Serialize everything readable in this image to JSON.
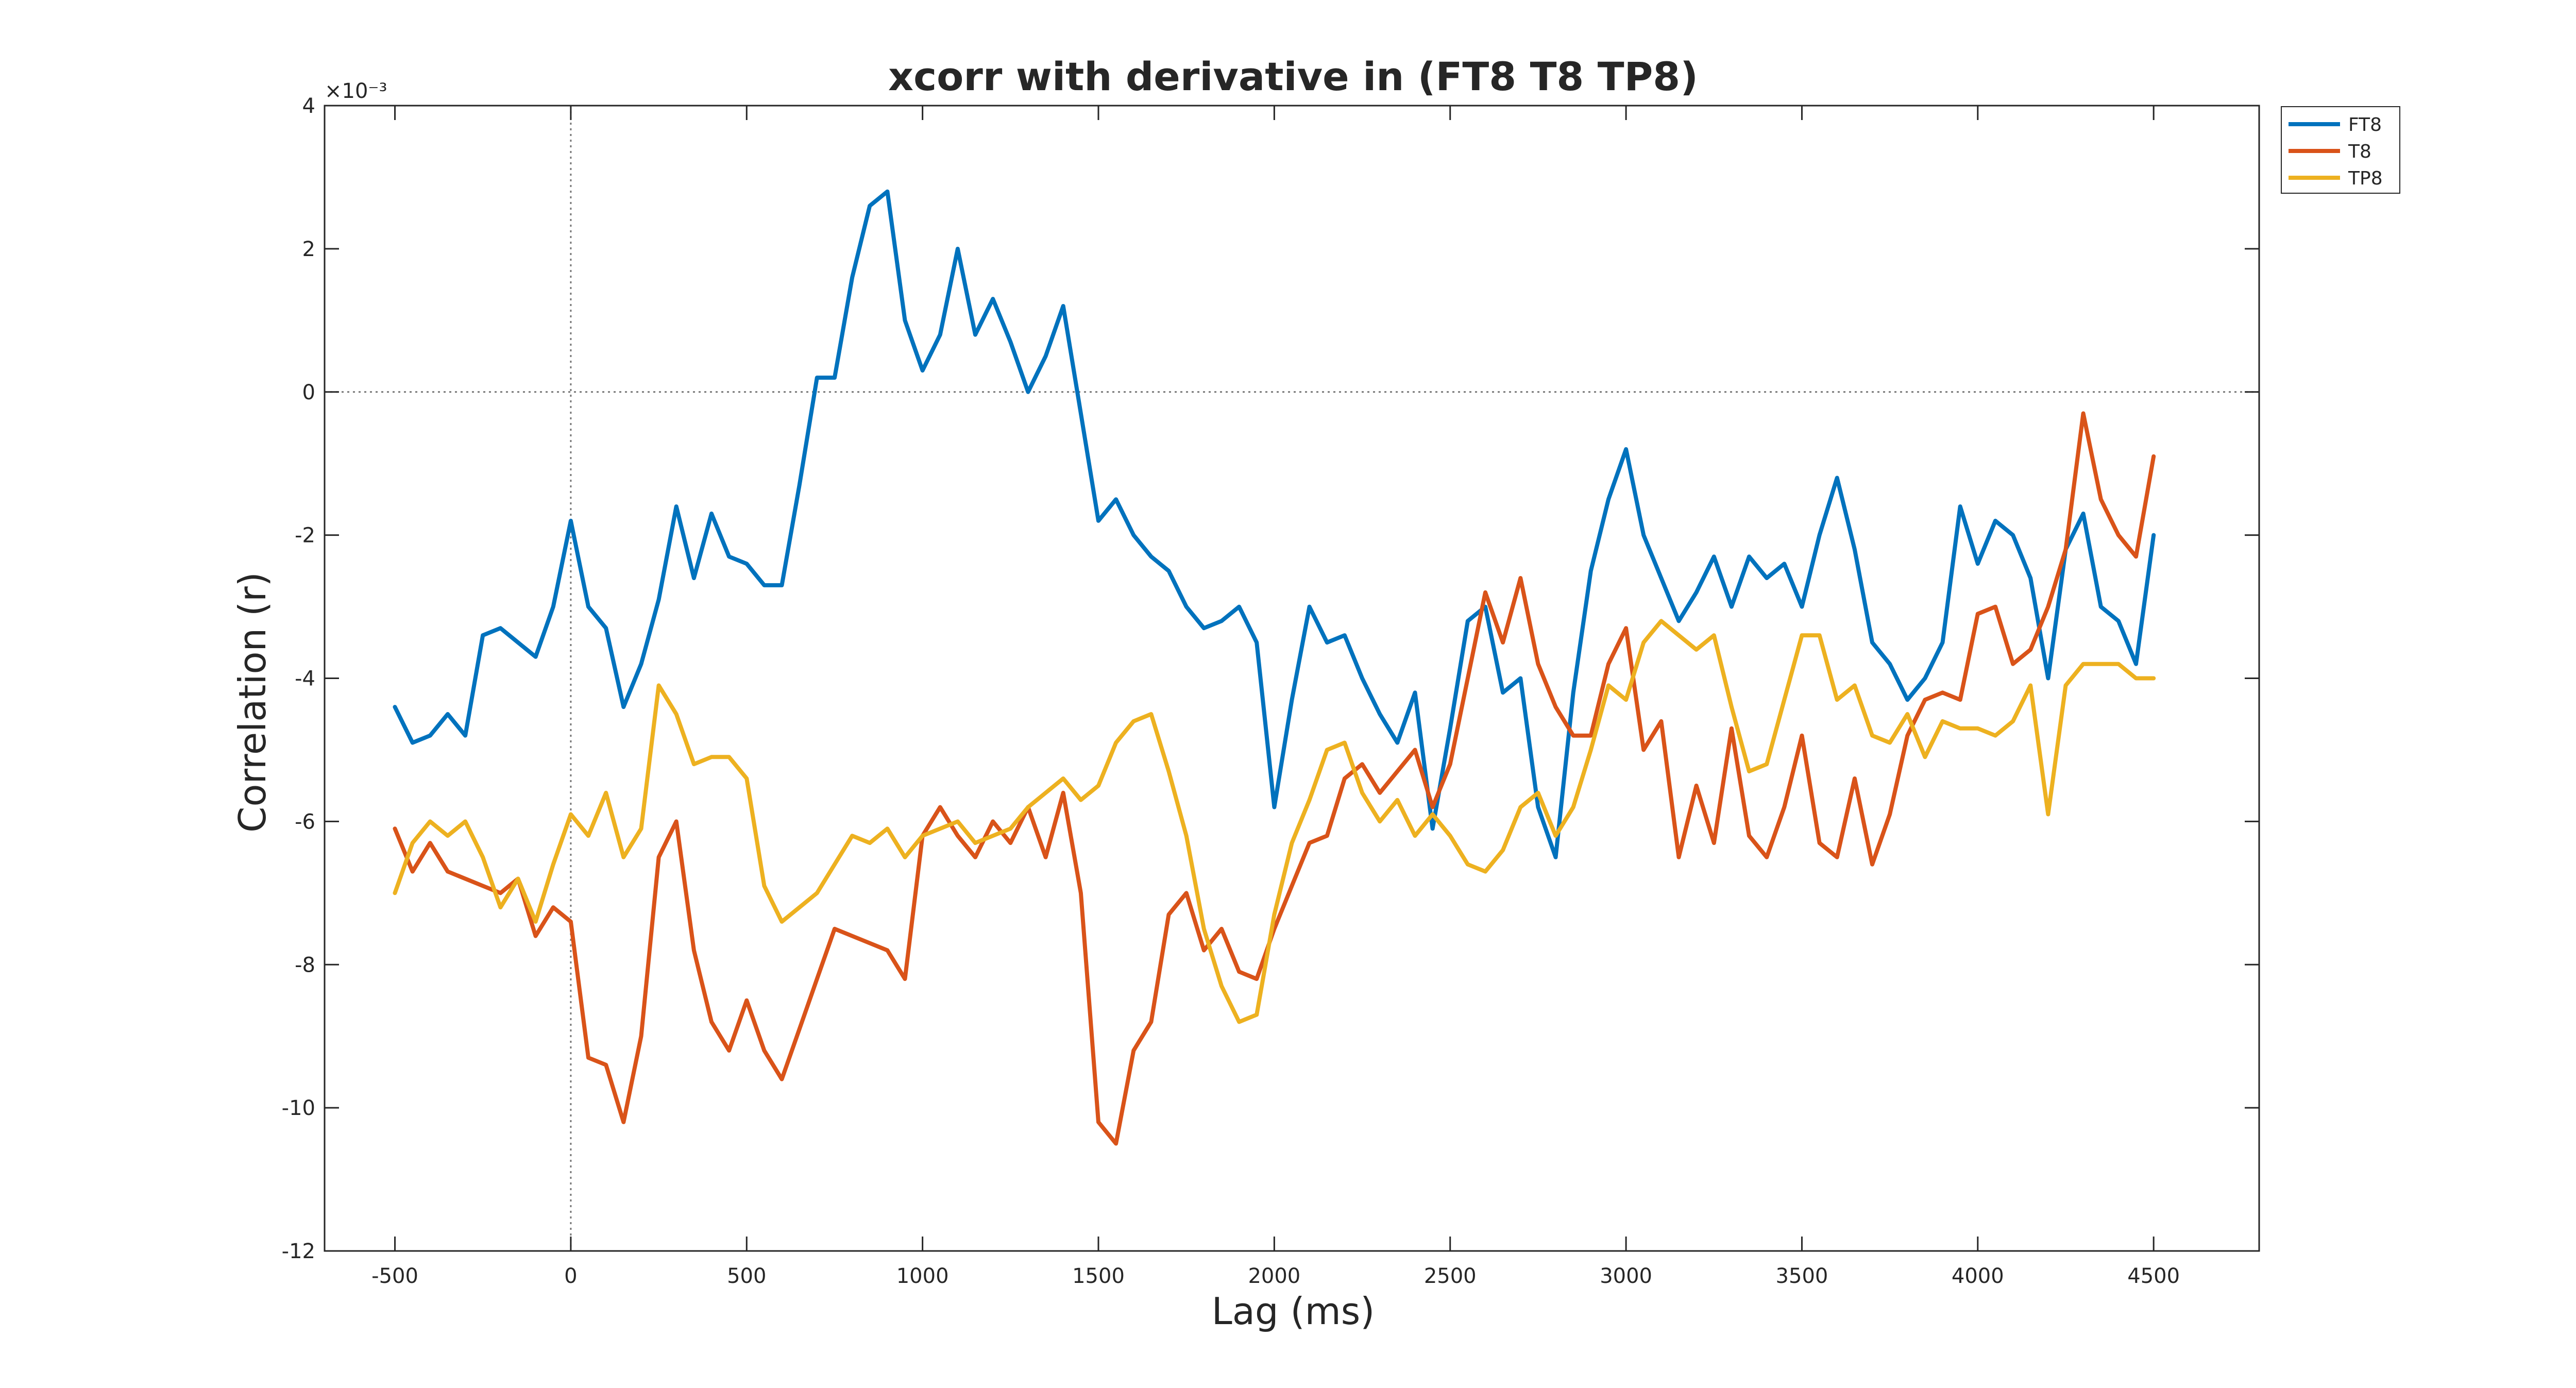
{
  "chart_data": {
    "type": "line",
    "title": "xcorr with derivative in (FT8 T8 TP8)",
    "xlabel": "Lag (ms)",
    "ylabel": "Correlation (r)",
    "y_exponent_label": "×10⁻³",
    "xlim": [
      -700,
      4800
    ],
    "ylim": [
      -12,
      4
    ],
    "xticks": [
      -500,
      0,
      500,
      1000,
      1500,
      2000,
      2500,
      3000,
      3500,
      4000,
      4500
    ],
    "yticks": [
      -12,
      -10,
      -8,
      -6,
      -4,
      -2,
      0,
      2,
      4
    ],
    "reference_lines": {
      "x": 0,
      "y": 0
    },
    "legend_position": "outside-top-right",
    "x": [
      -500,
      -450,
      -400,
      -350,
      -300,
      -250,
      -200,
      -150,
      -100,
      -50,
      0,
      50,
      100,
      150,
      200,
      250,
      300,
      350,
      400,
      450,
      500,
      550,
      600,
      650,
      700,
      750,
      800,
      850,
      900,
      950,
      1000,
      1050,
      1100,
      1150,
      1200,
      1250,
      1300,
      1350,
      1400,
      1450,
      1500,
      1550,
      1600,
      1650,
      1700,
      1750,
      1800,
      1850,
      1900,
      1950,
      2000,
      2050,
      2100,
      2150,
      2200,
      2250,
      2300,
      2350,
      2400,
      2450,
      2500,
      2550,
      2600,
      2650,
      2700,
      2750,
      2800,
      2850,
      2900,
      2950,
      3000,
      3050,
      3100,
      3150,
      3200,
      3250,
      3300,
      3350,
      3400,
      3450,
      3500,
      3550,
      3600,
      3650,
      3700,
      3750,
      3800,
      3850,
      3900,
      3950,
      4000,
      4050,
      4100,
      4150,
      4200,
      4250,
      4300,
      4350,
      4400,
      4450,
      4500
    ],
    "series": [
      {
        "name": "FT8",
        "color": "#0072BD",
        "values": [
          -4.4,
          -4.9,
          -4.8,
          -4.5,
          -4.8,
          -3.4,
          -3.3,
          -3.5,
          -3.7,
          -3.0,
          -1.8,
          -3.0,
          -3.3,
          -4.4,
          -3.8,
          -2.9,
          -1.6,
          -2.6,
          -1.7,
          -2.3,
          -2.4,
          -2.7,
          -2.7,
          -1.3,
          0.2,
          0.2,
          1.6,
          2.6,
          2.8,
          1.0,
          0.3,
          0.8,
          2.0,
          0.8,
          1.3,
          0.7,
          0.0,
          0.5,
          1.2,
          -0.3,
          -1.8,
          -1.5,
          -2.0,
          -2.3,
          -2.5,
          -3.0,
          -3.3,
          -3.2,
          -3.0,
          -3.5,
          -5.8,
          -4.3,
          -3.0,
          -3.5,
          -3.4,
          -4.0,
          -4.5,
          -4.9,
          -4.2,
          -6.1,
          -4.7,
          -3.2,
          -3.0,
          -4.2,
          -4.0,
          -5.8,
          -6.5,
          -4.2,
          -2.5,
          -1.5,
          -0.8,
          -2.0,
          -2.6,
          -3.2,
          -2.8,
          -2.3,
          -3.0,
          -2.3,
          -2.6,
          -2.4,
          -3.0,
          -2.0,
          -1.2,
          -2.2,
          -3.5,
          -3.8,
          -4.3,
          -4.0,
          -3.5,
          -1.6,
          -2.4,
          -1.8,
          -2.0,
          -2.6,
          -4.0,
          -2.2,
          -1.7,
          -3.0,
          -3.2,
          -3.8,
          -2.0
        ]
      },
      {
        "name": "T8",
        "color": "#D95319",
        "values": [
          -6.1,
          -6.7,
          -6.3,
          -6.7,
          -6.8,
          -6.9,
          -7.0,
          -6.8,
          -7.6,
          -7.2,
          -7.4,
          -9.3,
          -9.4,
          -10.2,
          -9.0,
          -6.5,
          -6.0,
          -7.8,
          -8.8,
          -9.2,
          -8.5,
          -9.2,
          -9.6,
          -8.9,
          -8.2,
          -7.5,
          -7.6,
          -7.7,
          -7.8,
          -8.2,
          -6.2,
          -5.8,
          -6.2,
          -6.5,
          -6.0,
          -6.3,
          -5.8,
          -6.5,
          -5.6,
          -7.0,
          -10.2,
          -10.5,
          -9.2,
          -8.8,
          -7.3,
          -7.0,
          -7.8,
          -7.5,
          -8.1,
          -8.2,
          -7.5,
          -6.9,
          -6.3,
          -6.2,
          -5.4,
          -5.2,
          -5.6,
          -5.3,
          -5.0,
          -5.8,
          -5.2,
          -4.0,
          -2.8,
          -3.5,
          -2.6,
          -3.8,
          -4.4,
          -4.8,
          -4.8,
          -3.8,
          -3.3,
          -5.0,
          -4.6,
          -6.5,
          -5.5,
          -6.3,
          -4.7,
          -6.2,
          -6.5,
          -5.8,
          -4.8,
          -6.3,
          -6.5,
          -5.4,
          -6.6,
          -5.9,
          -4.8,
          -4.3,
          -4.2,
          -4.3,
          -3.1,
          -3.0,
          -3.8,
          -3.6,
          -3.0,
          -2.2,
          -0.3,
          -1.5,
          -2.0,
          -2.3,
          -0.9
        ]
      },
      {
        "name": "TP8",
        "color": "#EDB120",
        "values": [
          -7.0,
          -6.3,
          -6.0,
          -6.2,
          -6.0,
          -6.5,
          -7.2,
          -6.8,
          -7.4,
          -6.6,
          -5.9,
          -6.2,
          -5.6,
          -6.5,
          -6.1,
          -4.1,
          -4.5,
          -5.2,
          -5.1,
          -5.1,
          -5.4,
          -6.9,
          -7.4,
          -7.2,
          -7.0,
          -6.6,
          -6.2,
          -6.3,
          -6.1,
          -6.5,
          -6.2,
          -6.1,
          -6.0,
          -6.3,
          -6.2,
          -6.1,
          -5.8,
          -5.6,
          -5.4,
          -5.7,
          -5.5,
          -4.9,
          -4.6,
          -4.5,
          -5.3,
          -6.2,
          -7.5,
          -8.3,
          -8.8,
          -8.7,
          -7.3,
          -6.3,
          -5.7,
          -5.0,
          -4.9,
          -5.6,
          -6.0,
          -5.7,
          -6.2,
          -5.9,
          -6.2,
          -6.6,
          -6.7,
          -6.4,
          -5.8,
          -5.6,
          -6.2,
          -5.8,
          -5.0,
          -4.1,
          -4.3,
          -3.5,
          -3.2,
          -3.4,
          -3.6,
          -3.4,
          -4.4,
          -5.3,
          -5.2,
          -4.3,
          -3.4,
          -3.4,
          -4.3,
          -4.1,
          -4.8,
          -4.9,
          -4.5,
          -5.1,
          -4.6,
          -4.7,
          -4.7,
          -4.8,
          -4.6,
          -4.1,
          -5.9,
          -4.1,
          -3.8,
          -3.8,
          -3.8,
          -4.0,
          -4.0
        ]
      }
    ]
  }
}
